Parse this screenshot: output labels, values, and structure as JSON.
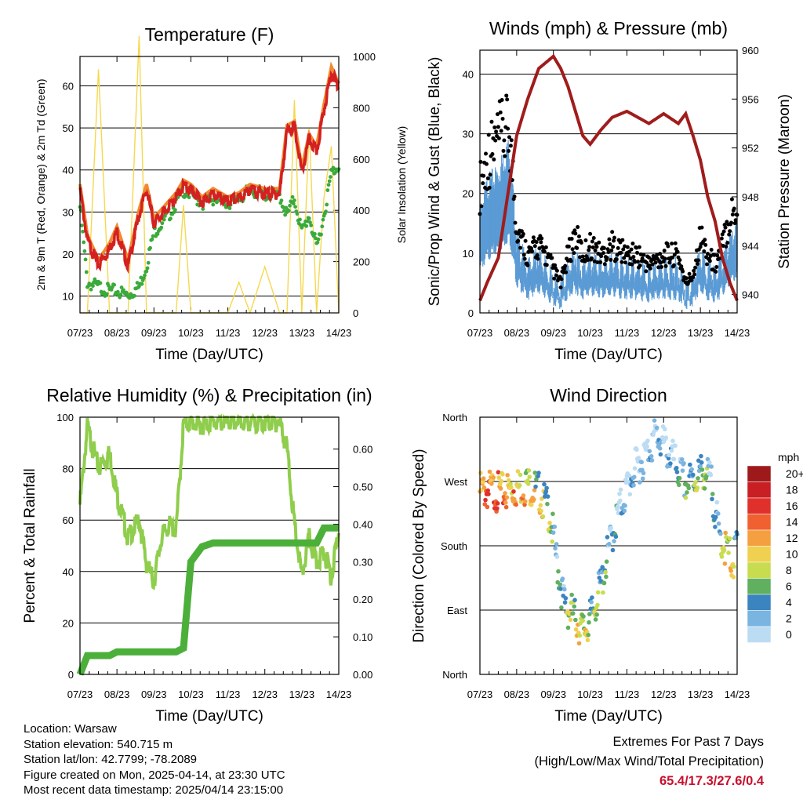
{
  "x_ticks": [
    "07/23",
    "08/23",
    "09/23",
    "10/23",
    "11/23",
    "12/23",
    "13/23",
    "14/23"
  ],
  "charts": {
    "temperature": {
      "title": "Temperature (F)",
      "xlabel": "Time (Day/UTC)",
      "ylabel_left": "2m & 9m T (Red, Orange) & 2m Td (Green)",
      "ylabel_right": "Solar Insolation (Yellow)",
      "yticks_left": [
        10,
        20,
        30,
        40,
        50,
        60
      ],
      "yticks_right": [
        0,
        200,
        400,
        600,
        800,
        1000
      ]
    },
    "winds": {
      "title": "Winds (mph) & Pressure (mb)",
      "xlabel": "Time (Day/UTC)",
      "ylabel_left": "Sonic/Prop Wind & Gust (Blue, Black)",
      "ylabel_right": "Station Pressure (Maroon)",
      "yticks_left": [
        0,
        10,
        20,
        30,
        40
      ],
      "yticks_right": [
        940,
        944,
        948,
        952,
        956,
        960
      ]
    },
    "humidity": {
      "title": "Relative Humidity (%) & Precipitation (in)",
      "xlabel": "Time (Day/UTC)",
      "ylabel_left": "Percent & Total Rainfall",
      "yticks_left": [
        0,
        20,
        40,
        60,
        80,
        100
      ],
      "yticks_right": [
        "0.00",
        "0.10",
        "0.20",
        "0.30",
        "0.40",
        "0.50",
        "0.60"
      ]
    },
    "direction": {
      "title": "Wind Direction",
      "xlabel": "Time (Day/UTC)",
      "ylabel_left": "Direction (Colored By Speed)",
      "yticks_left": [
        "North",
        "East",
        "South",
        "West",
        "North"
      ],
      "legend_title": "mph",
      "legend_labels": [
        "20+",
        "18",
        "16",
        "14",
        "12",
        "10",
        "8",
        "6",
        "4",
        "2",
        "0"
      ],
      "legend_colors": [
        "#9e1a1a",
        "#c81e24",
        "#e0302b",
        "#f06030",
        "#f5a040",
        "#f0d050",
        "#c8dc50",
        "#60b060",
        "#3a84c0",
        "#7ab4e0",
        "#bcdcf4"
      ]
    }
  },
  "info": {
    "location": "Location: Warsaw",
    "elevation": "Station elevation: 540.715 m",
    "latlon": "Station lat/lon: 42.7799; -78.2089",
    "created": "Figure created on Mon, 2025-04-14, at 23:30 UTC",
    "latest": "Most recent data timestamp: 2025/04/14 23:15:00"
  },
  "extremes": {
    "title": "Extremes For Past 7 Days",
    "subtitle": "(High/Low/Max Wind/Total Precipitation)",
    "values": "65.4/17.3/27.6/0.4"
  },
  "colors": {
    "temp_2m": "#d42020",
    "temp_9m": "#f08a30",
    "dewpoint": "#3aaa3a",
    "solar": "#f5d850",
    "wind": "#5b9bd5",
    "gust": "#000000",
    "pressure": "#a01c1c",
    "rh": "#8fcd4c",
    "precip": "#4caf3a"
  },
  "chart_data": [
    {
      "type": "line",
      "title": "Temperature (F)",
      "x": [
        7,
        7.2,
        7.5,
        7.8,
        8,
        8.3,
        8.6,
        8.8,
        9,
        9.2,
        9.4,
        9.6,
        9.8,
        10,
        10.3,
        10.6,
        11,
        11.3,
        11.6,
        12,
        12.4,
        12.6,
        12.8,
        13,
        13.2,
        13.4,
        13.6,
        13.8,
        14
      ],
      "series": [
        {
          "name": "2m T",
          "values": [
            36,
            24,
            18,
            22,
            26,
            18,
            30,
            36,
            28,
            30,
            32,
            34,
            37,
            36,
            33,
            35,
            33,
            34,
            36,
            35,
            35,
            50,
            51,
            40,
            48,
            45,
            55,
            64,
            60
          ]
        },
        {
          "name": "2m Td",
          "values": [
            32,
            14,
            13,
            12,
            12,
            11,
            13,
            18,
            26,
            28,
            30,
            33,
            36,
            35,
            33,
            34,
            33,
            34,
            36,
            35,
            35,
            30,
            34,
            26,
            30,
            22,
            30,
            40,
            42
          ]
        },
        {
          "name": "Solar",
          "values": [
            0,
            0,
            950,
            0,
            0,
            0,
            1080,
            0,
            0,
            0,
            0,
            0,
            420,
            0,
            0,
            0,
            0,
            120,
            0,
            180,
            0,
            0,
            830,
            0,
            720,
            0,
            450,
            650,
            0
          ]
        }
      ],
      "ylim": [
        6,
        67
      ],
      "ylim_right": [
        0,
        1000
      ]
    },
    {
      "type": "scatter",
      "title": "Winds (mph) & Pressure (mb)",
      "x": [
        7,
        7.2,
        7.5,
        7.8,
        8,
        8.3,
        8.6,
        8.8,
        9,
        9.2,
        9.4,
        9.6,
        9.8,
        10,
        10.3,
        10.6,
        11,
        11.3,
        11.6,
        12,
        12.4,
        12.6,
        12.8,
        13,
        13.2,
        13.4,
        13.6,
        13.8,
        14
      ],
      "series": [
        {
          "name": "Wind",
          "values": [
            14,
            18,
            20,
            24,
            10,
            6,
            8,
            6,
            4,
            3,
            6,
            8,
            6,
            7,
            6,
            7,
            6,
            6,
            5,
            6,
            6,
            3,
            4,
            8,
            6,
            5,
            7,
            10,
            12
          ]
        },
        {
          "name": "Gust",
          "values": [
            26,
            32,
            36,
            38,
            18,
            12,
            14,
            12,
            9,
            6,
            12,
            16,
            12,
            14,
            12,
            14,
            12,
            12,
            10,
            12,
            12,
            6,
            8,
            16,
            12,
            10,
            14,
            20,
            22
          ]
        },
        {
          "name": "Pressure",
          "values": [
            939.5,
            941,
            943,
            949,
            953,
            956,
            958.5,
            959,
            959.5,
            958.5,
            957,
            955,
            953,
            952.3,
            953.5,
            954.5,
            955,
            954.5,
            954,
            954.8,
            954,
            954.8,
            953,
            951,
            948,
            946,
            943,
            941,
            939.5
          ]
        }
      ],
      "ylim": [
        0,
        44
      ],
      "ylim_right": [
        938.5,
        960
      ]
    },
    {
      "type": "line",
      "title": "Relative Humidity (%) & Precipitation (in)",
      "x": [
        7,
        7.2,
        7.5,
        7.8,
        8,
        8.3,
        8.6,
        8.8,
        9,
        9.2,
        9.4,
        9.6,
        9.8,
        10,
        10.3,
        10.6,
        11,
        11.3,
        11.6,
        12,
        12.4,
        12.6,
        12.8,
        13,
        13.2,
        13.4,
        13.6,
        13.8,
        14
      ],
      "series": [
        {
          "name": "RH",
          "values": [
            68,
            98,
            82,
            88,
            72,
            55,
            62,
            45,
            38,
            55,
            60,
            58,
            99,
            100,
            99,
            100,
            100,
            100,
            100,
            100,
            100,
            90,
            60,
            40,
            55,
            45,
            50,
            40,
            57
          ]
        },
        {
          "name": "Precip",
          "values": [
            0,
            0.05,
            0.05,
            0.05,
            0.06,
            0.06,
            0.06,
            0.06,
            0.06,
            0.06,
            0.06,
            0.06,
            0.07,
            0.3,
            0.34,
            0.35,
            0.35,
            0.35,
            0.35,
            0.35,
            0.35,
            0.35,
            0.35,
            0.35,
            0.35,
            0.35,
            0.39,
            0.39,
            0.39
          ]
        }
      ],
      "ylim": [
        0,
        100
      ],
      "ylim_right": [
        0,
        0.685
      ]
    },
    {
      "type": "scatter",
      "title": "Wind Direction",
      "x": [
        7,
        7.3,
        7.6,
        8,
        8.3,
        8.6,
        8.9,
        9.1,
        9.3,
        9.5,
        9.8,
        10,
        10.3,
        10.6,
        10.9,
        11.2,
        11.5,
        11.8,
        12,
        12.3,
        12.6,
        12.9,
        13.1,
        13.3,
        13.5,
        13.7,
        13.9,
        14
      ],
      "values": [
        270,
        272,
        268,
        275,
        280,
        270,
        240,
        170,
        110,
        100,
        75,
        90,
        140,
        210,
        260,
        300,
        320,
        350,
        335,
        310,
        280,
        290,
        300,
        280,
        210,
        190,
        170,
        200
      ],
      "speeds": [
        14,
        16,
        14,
        14,
        12,
        10,
        8,
        5,
        6,
        10,
        11,
        8,
        7,
        4,
        3,
        3,
        2,
        4,
        2,
        3,
        6,
        8,
        7,
        4,
        5,
        12,
        10,
        6
      ],
      "ylim": [
        0,
        360
      ]
    }
  ]
}
